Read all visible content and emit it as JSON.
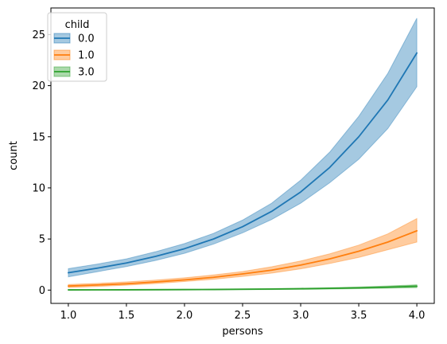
{
  "chart_data": {
    "type": "line",
    "title": "",
    "xlabel": "persons",
    "ylabel": "count",
    "xlim": [
      0.85,
      4.15
    ],
    "ylim": [
      -1.3,
      27.6
    ],
    "x_ticks": [
      1.0,
      1.5,
      2.0,
      2.5,
      3.0,
      3.5,
      4.0
    ],
    "x_tick_labels": [
      "1.0",
      "1.5",
      "2.0",
      "2.5",
      "3.0",
      "3.5",
      "4.0"
    ],
    "y_ticks": [
      0,
      5,
      10,
      15,
      20,
      25
    ],
    "y_tick_labels": [
      "0",
      "5",
      "10",
      "15",
      "20",
      "25"
    ],
    "grid": false,
    "legend": {
      "title": "child",
      "placement": "top-left"
    },
    "x": [
      1.0,
      1.25,
      1.5,
      1.75,
      2.0,
      2.25,
      2.5,
      2.75,
      3.0,
      3.25,
      3.5,
      3.75,
      4.0
    ],
    "series": [
      {
        "name": "0.0",
        "color": "#1f77b4",
        "values": [
          1.7,
          2.15,
          2.65,
          3.3,
          4.05,
          5.0,
          6.2,
          7.7,
          9.6,
          12.0,
          15.0,
          18.6,
          23.2
        ],
        "lower": [
          1.3,
          1.8,
          2.3,
          2.9,
          3.6,
          4.5,
          5.6,
          6.9,
          8.5,
          10.5,
          12.8,
          15.8,
          19.9
        ],
        "upper": [
          2.1,
          2.55,
          3.05,
          3.75,
          4.55,
          5.55,
          6.85,
          8.5,
          10.75,
          13.5,
          17.0,
          21.2,
          26.6
        ]
      },
      {
        "name": "1.0",
        "color": "#ff7f0e",
        "values": [
          0.4,
          0.5,
          0.62,
          0.8,
          1.0,
          1.25,
          1.58,
          1.95,
          2.45,
          3.05,
          3.8,
          4.7,
          5.8
        ],
        "lower": [
          0.25,
          0.36,
          0.48,
          0.64,
          0.84,
          1.06,
          1.34,
          1.66,
          2.08,
          2.6,
          3.2,
          3.95,
          4.7
        ],
        "upper": [
          0.55,
          0.66,
          0.8,
          0.98,
          1.2,
          1.48,
          1.82,
          2.28,
          2.85,
          3.55,
          4.4,
          5.5,
          7.0
        ]
      },
      {
        "name": "3.0",
        "color": "#2ca02c",
        "values": [
          0.02,
          0.025,
          0.03,
          0.04,
          0.05,
          0.06,
          0.08,
          0.1,
          0.13,
          0.17,
          0.22,
          0.29,
          0.38
        ],
        "lower": [
          0.0,
          0.005,
          0.01,
          0.015,
          0.02,
          0.03,
          0.04,
          0.055,
          0.075,
          0.1,
          0.14,
          0.19,
          0.24
        ],
        "upper": [
          0.05,
          0.055,
          0.06,
          0.07,
          0.08,
          0.1,
          0.12,
          0.15,
          0.19,
          0.24,
          0.31,
          0.4,
          0.52
        ]
      }
    ]
  }
}
